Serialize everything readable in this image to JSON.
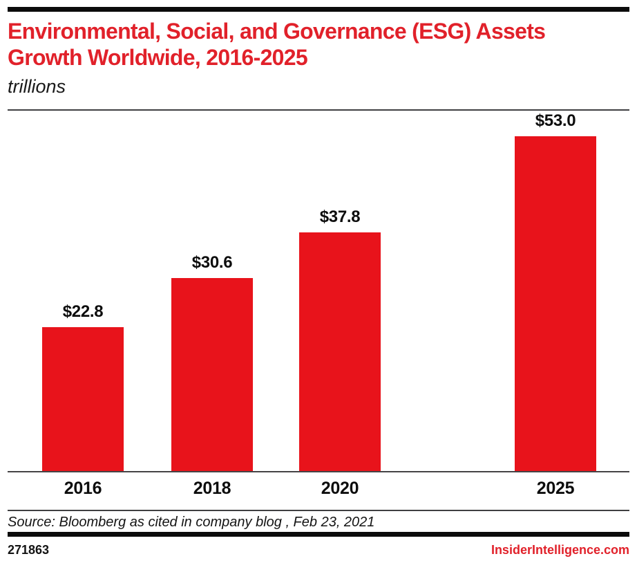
{
  "header": {
    "title": "Environmental, Social, and Governance (ESG) Assets Growth Worldwide, 2016-2025",
    "subtitle": "trillions"
  },
  "chart_data": {
    "type": "bar",
    "title": "Environmental, Social, and Governance (ESG) Assets Growth Worldwide, 2016-2025",
    "unit_note": "trillions",
    "categories": [
      "2016",
      "2018",
      "2020",
      "2025"
    ],
    "values": [
      22.8,
      30.6,
      37.8,
      53.0
    ],
    "value_labels": [
      "$22.8",
      "$30.6",
      "$37.8",
      "$53.0"
    ],
    "xlabel": "",
    "ylabel": "trillions of dollars",
    "ylim": [
      0,
      57.4
    ],
    "grid": false,
    "legend": false,
    "bar_color": "#E8131B"
  },
  "colors": {
    "accent_red": "#E1212A",
    "bar_red": "#E8131B",
    "rule_black": "#0b0b0b"
  },
  "source": {
    "text": "Source: Bloomberg as cited in company blog , Feb 23, 2021"
  },
  "footer": {
    "chart_id": "271863",
    "brand": "InsiderIntelligence.com"
  }
}
